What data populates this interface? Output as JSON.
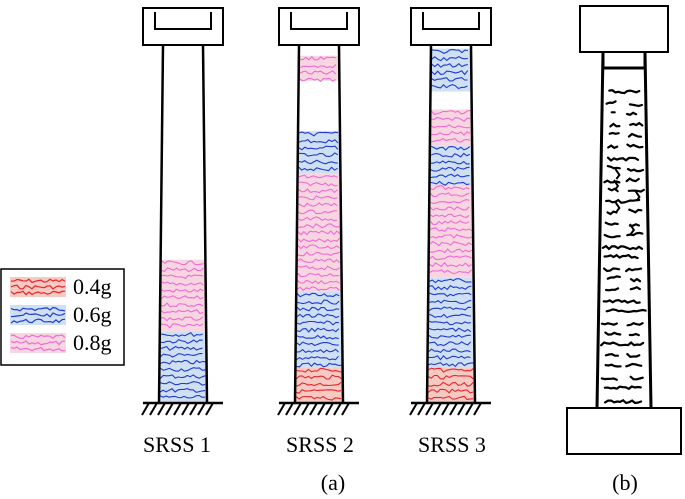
{
  "legend": {
    "items": [
      {
        "label": "0.4g",
        "color": "#e8262a",
        "band": "#f6c9c3"
      },
      {
        "label": "0.6g",
        "color": "#1f3ad0",
        "band": "#cfe0f4"
      },
      {
        "label": "0.8g",
        "color": "#f06ad2",
        "band": "#f7d6e2"
      }
    ]
  },
  "columns": [
    {
      "label": "SRSS 1",
      "bands": [
        {
          "level": "0.6g",
          "from": 0.0,
          "to": 0.2
        },
        {
          "level": "0.8g",
          "from": 0.2,
          "to": 0.4
        }
      ]
    },
    {
      "label": "SRSS 2",
      "bands": [
        {
          "level": "0.4g",
          "from": 0.0,
          "to": 0.1
        },
        {
          "level": "0.6g",
          "from": 0.1,
          "to": 0.31
        },
        {
          "level": "0.8g",
          "from": 0.31,
          "to": 0.64
        },
        {
          "level": "0.6g",
          "from": 0.64,
          "to": 0.76
        },
        {
          "level": "0.8g",
          "from": 0.9,
          "to": 0.97
        }
      ]
    },
    {
      "label": "SRSS 3",
      "bands": [
        {
          "level": "0.4g",
          "from": 0.0,
          "to": 0.1
        },
        {
          "level": "0.6g",
          "from": 0.1,
          "to": 0.35
        },
        {
          "level": "0.8g",
          "from": 0.35,
          "to": 0.61
        },
        {
          "level": "0.6g",
          "from": 0.61,
          "to": 0.72
        },
        {
          "level": "0.8g",
          "from": 0.72,
          "to": 0.82
        },
        {
          "level": "0.6g",
          "from": 0.87,
          "to": 0.99
        }
      ]
    }
  ],
  "panel_labels": {
    "a": "(a)",
    "b": "(b)"
  }
}
